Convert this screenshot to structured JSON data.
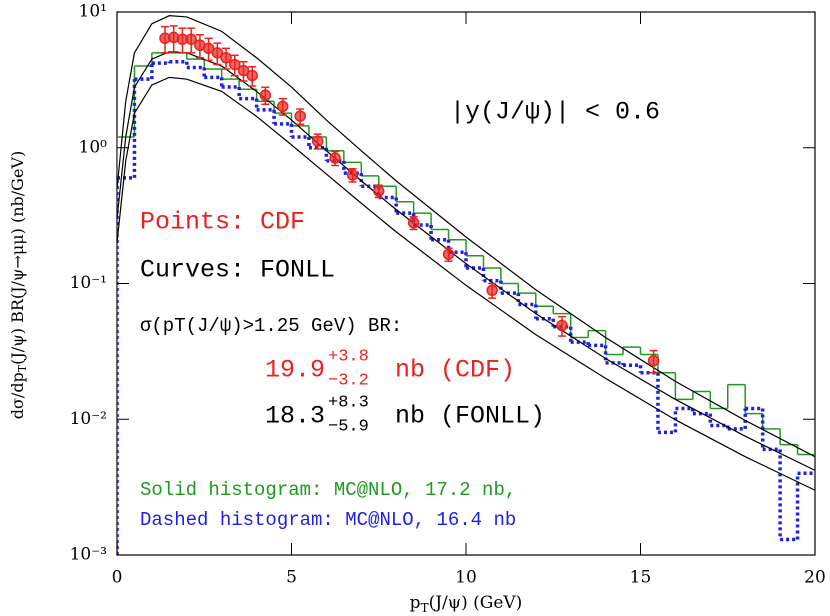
{
  "chart_data": {
    "type": "line",
    "x_label": {
      "main": "p",
      "sub": "T",
      "rest": "(J/ψ)  (GeV)"
    },
    "y_label": {
      "main": "dσ/dp",
      "sub": "T",
      "rest": "(J/ψ) BR(J/ψ→μμ)  (nb/GeV)"
    },
    "xlim": [
      0,
      20
    ],
    "xticks": [
      0,
      5,
      10,
      15,
      20
    ],
    "ylim": [
      0.001,
      10
    ],
    "log_y": true,
    "yticks": [
      {
        "value": 0.001,
        "label": "10⁻³"
      },
      {
        "value": 0.01,
        "label": "10⁻²"
      },
      {
        "value": 0.1,
        "label": "10⁻¹"
      },
      {
        "value": 1,
        "label": "10⁰"
      },
      {
        "value": 10,
        "label": "10¹"
      }
    ],
    "annotations": {
      "rapidity": "|y(J/ψ)|  <  0.6",
      "points": "Points: CDF",
      "curves": "Curves: FONLL",
      "sigma": "σ(pT(J/ψ)>1.25 GeV) BR:",
      "cdf_result": {
        "value": "19.9",
        "plus": "+3.8",
        "minus": "−3.2",
        "unit": "nb (CDF)"
      },
      "fonll_result": {
        "value": "18.3",
        "plus": "+8.3",
        "minus": "−5.9",
        "unit": "nb (FONLL)"
      },
      "solid_hist": "Solid histogram: MC@NLO, 17.2 nb,",
      "dashed_hist": "Dashed histogram: MC@NLO, 16.4 nb"
    },
    "lines": [
      {
        "color": "#000000",
        "x": [
          0,
          0.25,
          0.5,
          1,
          1.5,
          2,
          3,
          4,
          5,
          6,
          7,
          8,
          10,
          12,
          14,
          16,
          18,
          20
        ],
        "values": [
          0.5,
          2.2,
          5.0,
          8.2,
          9.4,
          9.2,
          7.2,
          4.6,
          2.8,
          1.6,
          0.95,
          0.57,
          0.22,
          0.09,
          0.04,
          0.019,
          0.0098,
          0.0053
        ]
      },
      {
        "color": "#000000",
        "x": [
          0,
          0.25,
          0.5,
          1,
          1.5,
          2,
          3,
          4,
          5,
          6,
          7,
          8,
          10,
          12,
          14,
          16,
          18,
          20
        ],
        "values": [
          0.3,
          1.2,
          2.8,
          4.5,
          5.1,
          5.0,
          4.0,
          2.6,
          1.6,
          0.95,
          0.57,
          0.35,
          0.14,
          0.06,
          0.028,
          0.014,
          0.0075,
          0.0042
        ]
      },
      {
        "color": "#000000",
        "x": [
          0,
          0.25,
          0.5,
          1,
          1.5,
          2,
          3,
          4,
          5,
          6,
          7,
          8,
          10,
          12,
          14,
          16,
          18,
          20
        ],
        "values": [
          0.2,
          0.8,
          1.8,
          2.9,
          3.3,
          3.2,
          2.6,
          1.7,
          1.05,
          0.64,
          0.39,
          0.24,
          0.097,
          0.042,
          0.02,
          0.0099,
          0.0053,
          0.003
        ]
      }
    ],
    "bins": [
      0,
      0.5,
      1,
      1.5,
      2,
      2.5,
      3,
      3.5,
      4,
      4.5,
      5,
      5.5,
      6,
      6.5,
      7,
      7.5,
      8,
      8.5,
      9,
      9.5,
      10,
      10.5,
      11,
      11.5,
      12,
      12.5,
      13,
      13.5,
      14,
      14.5,
      15,
      15.5,
      16,
      16.5,
      17,
      17.5,
      18,
      18.5,
      19,
      19.5,
      20
    ],
    "histograms": [
      {
        "color": "#1f9a1f",
        "style": "solid",
        "values": [
          1.2,
          4.0,
          5.0,
          5.0,
          4.5,
          3.8,
          3.2,
          2.7,
          2.2,
          1.8,
          1.45,
          1.2,
          0.95,
          0.78,
          0.62,
          0.52,
          0.4,
          0.33,
          0.25,
          0.21,
          0.16,
          0.13,
          0.1,
          0.085,
          0.068,
          0.06,
          0.04,
          0.045,
          0.03,
          0.034,
          0.03,
          0.022,
          0.014,
          0.016,
          0.012,
          0.018,
          0.011,
          0.0085,
          0.0065,
          0.0055
        ]
      },
      {
        "color": "#1f1fe6",
        "style": "dashed",
        "values": [
          0.6,
          3.2,
          4.2,
          4.3,
          3.9,
          3.3,
          2.8,
          2.3,
          1.9,
          1.5,
          1.2,
          1.0,
          0.8,
          0.65,
          0.52,
          0.43,
          0.33,
          0.27,
          0.21,
          0.17,
          0.13,
          0.105,
          0.085,
          0.07,
          0.055,
          0.048,
          0.037,
          0.035,
          0.026,
          0.025,
          0.022,
          0.008,
          0.012,
          0.011,
          0.009,
          0.0085,
          0.012,
          0.006,
          0.0013,
          0.004
        ]
      }
    ],
    "points": {
      "color": "#e8231f",
      "x": [
        1.375,
        1.625,
        1.875,
        2.125,
        2.375,
        2.625,
        2.875,
        3.125,
        3.375,
        3.625,
        3.875,
        4.25,
        4.75,
        5.25,
        5.75,
        6.25,
        6.75,
        7.5,
        8.5,
        9.5,
        10.75,
        12.75,
        15.375
      ],
      "values": [
        6.4,
        6.5,
        6.3,
        6.3,
        5.7,
        5.4,
        5.0,
        4.6,
        4.1,
        3.7,
        3.4,
        2.44,
        2.02,
        1.71,
        1.12,
        0.84,
        0.63,
        0.48,
        0.28,
        0.164,
        0.089,
        0.049,
        0.027
      ],
      "errors": [
        1.4,
        1.4,
        1.3,
        1.3,
        1.1,
        1.0,
        0.9,
        0.8,
        0.7,
        0.6,
        0.55,
        0.35,
        0.28,
        0.22,
        0.14,
        0.1,
        0.07,
        0.05,
        0.03,
        0.018,
        0.011,
        0.008,
        0.005
      ]
    }
  }
}
